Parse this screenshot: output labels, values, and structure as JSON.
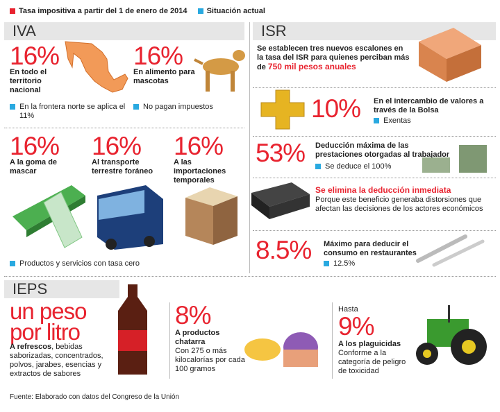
{
  "legend": {
    "items": [
      "Tasa impositiva a partir del 1 de enero de 2014",
      "Situación actual"
    ]
  },
  "iva": {
    "title": "IVA",
    "items": [
      {
        "rate": "16%",
        "desc": "En todo el territorio nacional",
        "current": "En la frontera norte se aplica el 11%"
      },
      {
        "rate": "16%",
        "desc": "En alimento para mascotas",
        "current": "No pagan impuestos"
      },
      {
        "rate": "16%",
        "desc": "A la goma de mascar"
      },
      {
        "rate": "16%",
        "desc": "Al transporte terrestre foráneo"
      },
      {
        "rate": "16%",
        "desc": "A las importaciones temporales"
      }
    ],
    "note": "Productos y servicios con tasa cero"
  },
  "isr": {
    "title": "ISR",
    "intro": "Se establecen tres nuevos escalones en la tasa del ISR para quienes perciban más de",
    "intro_highlight": "750 mil pesos anuales",
    "items": [
      {
        "rate": "10%",
        "desc": "En el intercambio de valores a través de la Bolsa",
        "current": "Exentas"
      },
      {
        "rate": "53%",
        "desc": "Deducción máxima de las prestaciones otorgadas al trabajador",
        "current": "Se deduce el 100%"
      },
      {
        "headline": "Se elimina la deducción inmediata",
        "desc": "Porque este beneficio generaba distorsiones que afectan las decisiones de los actores económicos"
      },
      {
        "rate": "8.5%",
        "desc": "Máximo para deducir el consumo en restaurantes",
        "current": "12.5%"
      }
    ]
  },
  "ieps": {
    "title": "IEPS",
    "items": [
      {
        "rate": "un peso por litro",
        "lead": "A refrescos",
        "desc": ", bebidas saborizadas, concentrados, polvos, jarabes, esencias y extractos de sabores"
      },
      {
        "rate": "8%",
        "lead": "A productos chatarra",
        "desc": "Con 275 o más kilocalorías por cada 100 gramos"
      },
      {
        "prefix": "Hasta",
        "rate": "9%",
        "lead": "A los plaguicidas",
        "desc": "Conforme a la categoría de peligro de toxicidad"
      }
    ]
  },
  "source": "Fuente: Elaborado con datos del Congreso de la Unión"
}
